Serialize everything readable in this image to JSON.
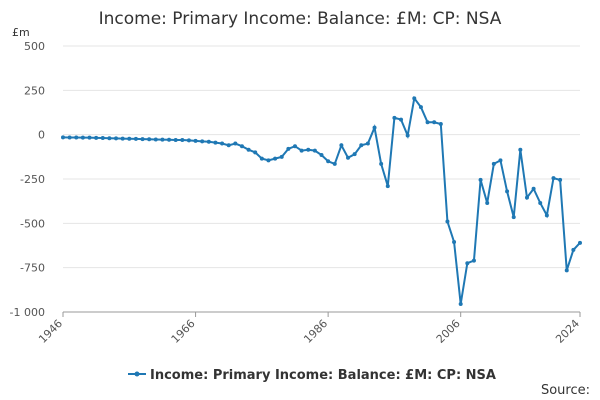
{
  "chart_data": {
    "type": "line",
    "title": "Income: Primary Income: Balance: £M: CP: NSA",
    "y_label": "£m",
    "source": "Source:",
    "x": [
      1946,
      1947,
      1948,
      1949,
      1950,
      1951,
      1952,
      1953,
      1954,
      1955,
      1956,
      1957,
      1958,
      1959,
      1960,
      1961,
      1962,
      1963,
      1964,
      1965,
      1966,
      1967,
      1968,
      1969,
      1970,
      1971,
      1972,
      1973,
      1974,
      1975,
      1976,
      1977,
      1978,
      1979,
      1980,
      1981,
      1982,
      1983,
      1984,
      1985,
      1986,
      1987,
      1988,
      1989,
      1990,
      1991,
      1992,
      1993,
      1994,
      1995,
      1996,
      1997,
      1998,
      1999,
      2000,
      2001,
      2002,
      2003,
      2004,
      2005,
      2006,
      2007,
      2008,
      2009,
      2010,
      2011,
      2012,
      2013,
      2014,
      2015,
      2016,
      2017,
      2018,
      2019,
      2020,
      2021,
      2022,
      2023,
      2024
    ],
    "series": [
      {
        "name": "Income: Primary Income: Balance: £M: CP: NSA",
        "color": "#1f78b4",
        "values": [
          -15,
          -16,
          -16,
          -17,
          -17,
          -18,
          -19,
          -20,
          -21,
          -22,
          -23,
          -24,
          -25,
          -26,
          -27,
          -28,
          -29,
          -30,
          -30,
          -32,
          -35,
          -38,
          -40,
          -45,
          -50,
          -60,
          -50,
          -65,
          -85,
          -100,
          -135,
          -145,
          -135,
          -125,
          -80,
          -65,
          -90,
          -85,
          -90,
          -115,
          -150,
          -165,
          -60,
          -130,
          -110,
          -60,
          -50,
          40,
          -165,
          -290,
          95,
          85,
          -5,
          205,
          155,
          70,
          70,
          60,
          -490,
          -605,
          -955,
          -725,
          -710,
          -255,
          -385,
          -165,
          -145,
          -320,
          -465,
          -85,
          -355,
          -305,
          -385,
          -455,
          -245,
          -255,
          -765,
          -650,
          -610
        ]
      }
    ],
    "xlim": [
      1946,
      2024
    ],
    "xticks": [
      1946,
      1966,
      1986,
      2006,
      2024
    ],
    "ylim": [
      -1000,
      500
    ],
    "yticks": [
      500,
      250,
      0,
      -250,
      -500,
      -750,
      {
        "value": -1000,
        "label": "-1 000"
      }
    ],
    "grid": true,
    "legend": "bottom"
  }
}
